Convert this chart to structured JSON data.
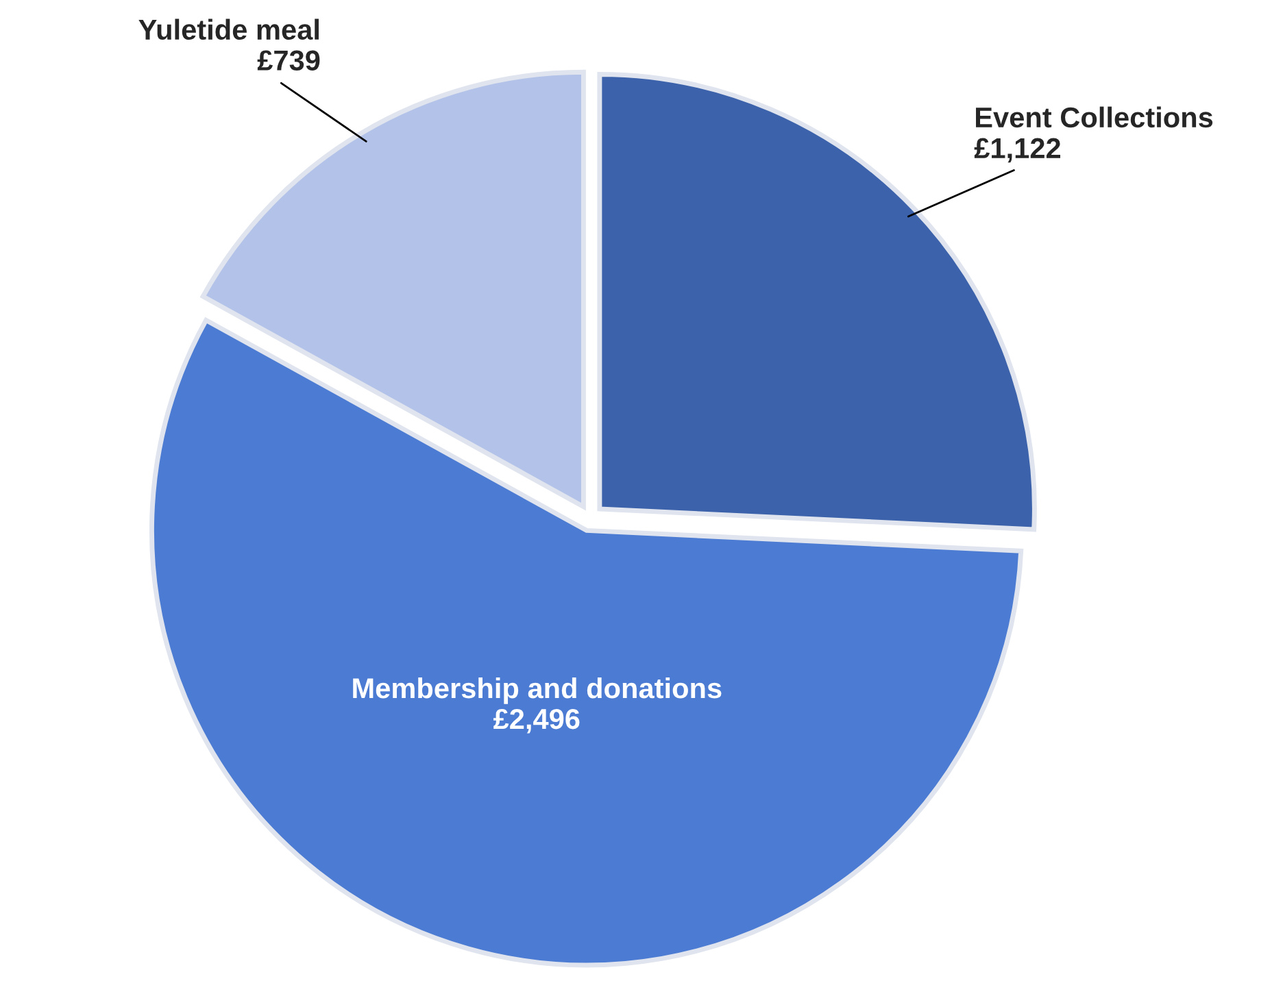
{
  "chart_data": {
    "type": "pie",
    "categories": [
      "Event Collections",
      "Membership and donations",
      "Yuletide meal"
    ],
    "values": [
      1122,
      2496,
      739
    ],
    "value_labels": [
      "£1,122",
      "£2,496",
      "£739"
    ],
    "colors": [
      "#3b62aa",
      "#4b7bd2",
      "#b3c2e8"
    ],
    "legend": false
  }
}
